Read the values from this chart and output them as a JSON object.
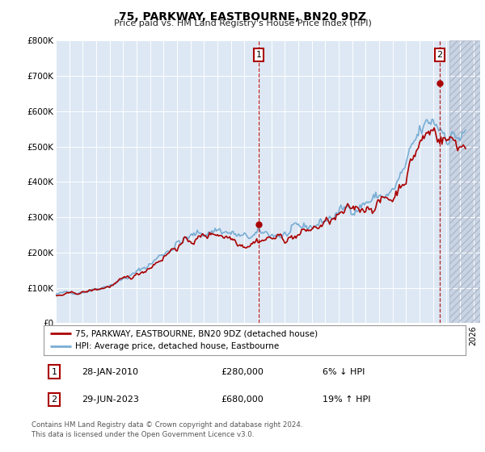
{
  "title": "75, PARKWAY, EASTBOURNE, BN20 9DZ",
  "subtitle": "Price paid vs. HM Land Registry's House Price Index (HPI)",
  "ylim": [
    0,
    800000
  ],
  "yticks": [
    0,
    100000,
    200000,
    300000,
    400000,
    500000,
    600000,
    700000,
    800000
  ],
  "ytick_labels": [
    "£0",
    "£100K",
    "£200K",
    "£300K",
    "£400K",
    "£500K",
    "£600K",
    "£700K",
    "£800K"
  ],
  "hpi_color": "#7aadd4",
  "price_color": "#aa0000",
  "bg_color": "#dde8f4",
  "future_color": "#c8d4e4",
  "sale1_x": 2010.07,
  "sale1_y": 280000,
  "sale2_x": 2023.5,
  "sale2_y": 680000,
  "legend_label1": "75, PARKWAY, EASTBOURNE, BN20 9DZ (detached house)",
  "legend_label2": "HPI: Average price, detached house, Eastbourne",
  "annotation1_date": "28-JAN-2010",
  "annotation1_price": "£280,000",
  "annotation1_hpi": "6% ↓ HPI",
  "annotation2_date": "29-JUN-2023",
  "annotation2_price": "£680,000",
  "annotation2_hpi": "19% ↑ HPI",
  "footer": "Contains HM Land Registry data © Crown copyright and database right 2024.\nThis data is licensed under the Open Government Licence v3.0.",
  "xmin": 1995.0,
  "xmax": 2026.5,
  "future_start": 2024.25
}
